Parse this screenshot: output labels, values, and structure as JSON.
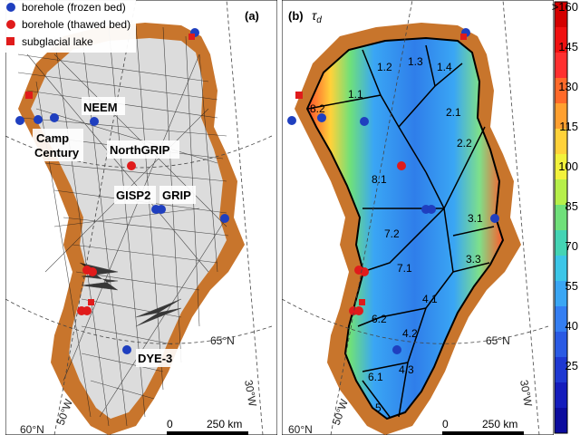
{
  "legend": {
    "items": [
      {
        "label": "borehole (frozen bed)",
        "marker": "circle",
        "color": "#1f3fbf"
      },
      {
        "label": "borehole (thawed bed)",
        "marker": "circle",
        "color": "#e01b1b"
      },
      {
        "label": "subglacial lake",
        "marker": "square",
        "color": "#e01b1b"
      }
    ]
  },
  "panel_a": {
    "tag": "(a)",
    "sites": {
      "neem": "NEEM",
      "camp_century_1": "Camp",
      "camp_century_2": "Century",
      "northgrip": "NorthGRIP",
      "gisp2": "GISP2",
      "grip": "GRIP",
      "dye3": "DYE-3"
    },
    "graticule": {
      "lat": "65°N",
      "lon_a": "30°W",
      "lat_b": "60°N",
      "lon_b": "50°W"
    },
    "scale": {
      "zero": "0",
      "dist": "250 km"
    }
  },
  "panel_b": {
    "tag": "(b)",
    "symbol": "τ",
    "symbol_sub": "d",
    "basins": [
      {
        "id": "1.1",
        "label": "1.1"
      },
      {
        "id": "1.2",
        "label": "1.2"
      },
      {
        "id": "1.3",
        "label": "1.3"
      },
      {
        "id": "1.4",
        "label": "1.4"
      },
      {
        "id": "2.1",
        "label": "2.1"
      },
      {
        "id": "2.2",
        "label": "2.2"
      },
      {
        "id": "3.1",
        "label": "3.1"
      },
      {
        "id": "3.3",
        "label": "3.3"
      },
      {
        "id": "4.1",
        "label": "4.1"
      },
      {
        "id": "4.2",
        "label": "4.2"
      },
      {
        "id": "4.3",
        "label": "4.3"
      },
      {
        "id": "5",
        "label": "5"
      },
      {
        "id": "6.1",
        "label": "6.1"
      },
      {
        "id": "6.2",
        "label": "6.2"
      },
      {
        "id": "7.1",
        "label": "7.1"
      },
      {
        "id": "7.2",
        "label": "7.2"
      },
      {
        "id": "8.1",
        "label": "8.1"
      },
      {
        "id": "8.2",
        "label": "8.2"
      }
    ],
    "graticule": {
      "lat": "65°N",
      "lon": "30°W",
      "lat_b": "60°N",
      "lon_b": "50°W"
    },
    "scale": {
      "zero": "0",
      "dist": "250 km"
    }
  },
  "colorbar": {
    "ticks": [
      ">160",
      "145",
      "130",
      "115",
      "100",
      "85",
      "70",
      "55",
      "40",
      "25"
    ],
    "colors": [
      "#d40000",
      "#f01010",
      "#ff3030",
      "#ff6a2a",
      "#ffa030",
      "#ffd23a",
      "#f2f23c",
      "#b6ef4a",
      "#6fe07a",
      "#44d4b4",
      "#3cc6e8",
      "#3aa6f4",
      "#347ef2",
      "#2a5ae4",
      "#1e38d2",
      "#141cbc",
      "#0c0c9e"
    ]
  }
}
